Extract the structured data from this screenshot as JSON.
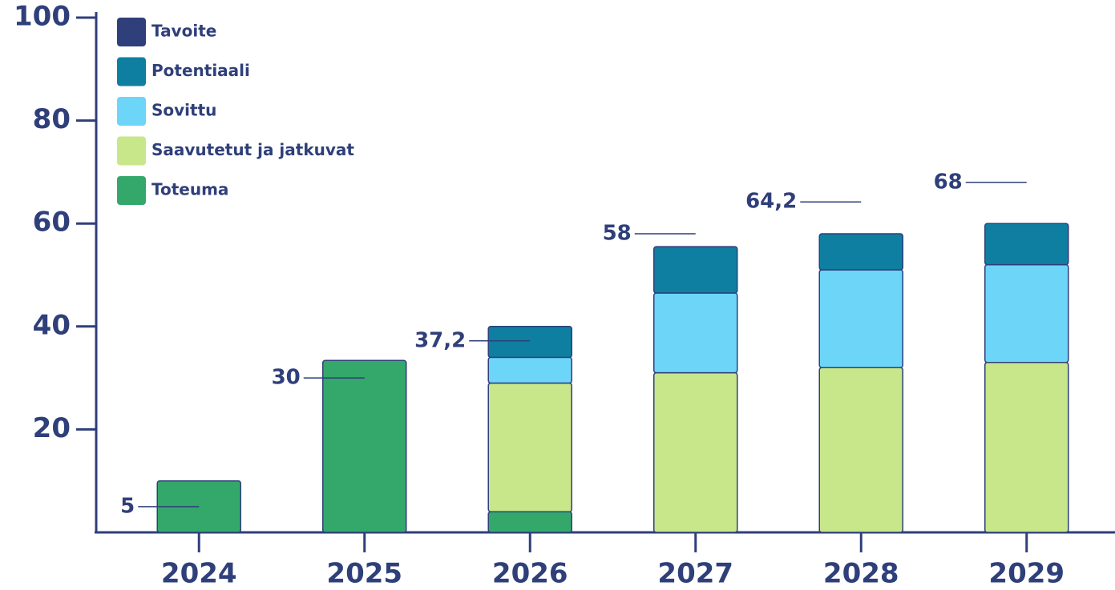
{
  "chart_data": {
    "type": "bar",
    "stacked": true,
    "categories": [
      "2024",
      "2025",
      "2026",
      "2027",
      "2028",
      "2029"
    ],
    "series": [
      {
        "name": "Tavoite",
        "type": "target",
        "color": "#2f3f7a",
        "values": [
          5,
          30,
          37.2,
          58,
          64.2,
          68
        ],
        "value_labels": [
          "5",
          "30",
          "37,2",
          "58",
          "64,2",
          "68"
        ]
      },
      {
        "name": "Potentiaali",
        "type": "bar",
        "color": "#0e7fa0",
        "values": [
          0,
          0,
          6,
          9,
          7,
          8
        ]
      },
      {
        "name": "Sovittu",
        "type": "bar",
        "color": "#6dd5f7",
        "values": [
          0,
          0,
          5,
          15.5,
          19,
          19
        ]
      },
      {
        "name": "Saavutetut ja jatkuvat",
        "type": "bar",
        "color": "#c8e68a",
        "values": [
          0,
          0,
          25,
          31,
          32,
          33
        ]
      },
      {
        "name": "Toteuma",
        "type": "bar",
        "color": "#33a86a",
        "values": [
          10,
          33.4,
          4,
          0,
          0,
          0
        ]
      }
    ],
    "ylim": [
      0,
      100
    ],
    "yticks": [
      20,
      40,
      60,
      80,
      100
    ],
    "legend": "top-left"
  }
}
